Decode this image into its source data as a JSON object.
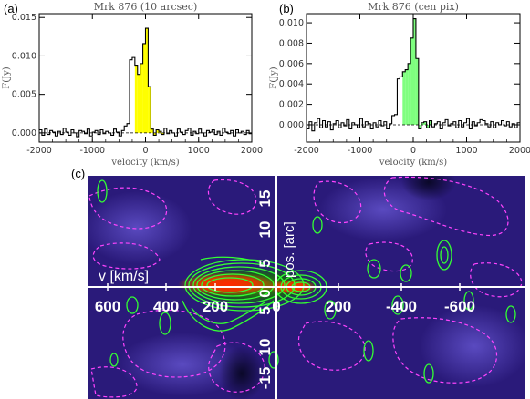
{
  "panels": {
    "a": "(a)",
    "b": "(b)",
    "c": "(c)"
  },
  "chart_data": [
    {
      "type": "bar",
      "style": "step-histogram",
      "title": "Mrk 876 (10 arcsec)",
      "xlabel": "velocity (km/s)",
      "ylabel": "F(Jy)",
      "xlim": [
        -2000,
        2000
      ],
      "ylim": [
        -0.0012,
        0.0155
      ],
      "xticks": [
        "-2000",
        "-1000",
        "0",
        "1000",
        "2000"
      ],
      "yticks": [
        "0.000",
        "0.005",
        "0.010",
        "0.015"
      ],
      "fill_color": "#ffff00",
      "fill_range": [
        -200,
        350
      ],
      "bin_width": 50,
      "x_start": -2000,
      "values": [
        0.0004,
        -0.0003,
        0.0005,
        -0.0002,
        0.0003,
        0.0001,
        -0.0004,
        0.0002,
        -0.0002,
        0.0006,
        0.0001,
        -0.0003,
        0.0004,
        0.0,
        -0.0005,
        0.0003,
        0.0002,
        -0.0001,
        0.0005,
        -0.0004,
        0.0001,
        0.0003,
        -0.0002,
        0.0004,
        -0.0001,
        0.0002,
        0.0,
        -0.0003,
        0.0005,
        0.0001,
        -0.0004,
        0.0003,
        0.0009,
        0.0012,
        0.0095,
        0.0098,
        0.0088,
        0.0076,
        0.009,
        0.0116,
        0.0136,
        0.006,
        0.0005,
        -0.0003,
        0.0004,
        0.0002,
        -0.0002,
        0.0006,
        -0.0001,
        0.0003,
        0.0,
        -0.0004,
        0.0005,
        0.0001,
        -0.0002,
        0.0003,
        0.0006,
        -0.0003,
        0.0002,
        -0.0001,
        0.0005,
        0.0,
        -0.0004,
        0.0003,
        0.0001,
        0.0004,
        -0.0002,
        0.0002,
        -0.0003,
        0.0006,
        0.0001,
        -0.0001,
        0.0003,
        -0.0004,
        0.0004,
        0.0,
        0.0002,
        -0.0002,
        0.0003,
        -0.0001
      ]
    },
    {
      "type": "bar",
      "style": "step-histogram",
      "title": "Mrk 876 (cen pix)",
      "xlabel": "velocity (km/s)",
      "ylabel": "F(Jy)",
      "xlim": [
        -2000,
        2000
      ],
      "ylim": [
        -0.0017,
        0.0109
      ],
      "xticks": [
        "-2000",
        "-1000",
        "0",
        "1000",
        "2000"
      ],
      "yticks": [
        "0.000",
        "0.002",
        "0.004",
        "0.006",
        "0.008",
        "0.010"
      ],
      "fill_color": "#7fff7f",
      "fill_range": [
        -200,
        350
      ],
      "bin_width": 50,
      "x_start": -2000,
      "values": [
        -0.0004,
        0.0003,
        -0.0006,
        0.0002,
        0.0006,
        -0.0003,
        0.0004,
        -0.0002,
        0.0003,
        -0.0005,
        0.0001,
        0.0004,
        -0.0003,
        0.0002,
        -0.0001,
        0.0005,
        -0.0004,
        0.0002,
        0.0,
        -0.0003,
        0.0006,
        -0.0002,
        0.0003,
        0.0001,
        -0.0004,
        0.0002,
        -0.0002,
        0.0004,
        -0.0001,
        0.0003,
        -0.0004,
        0.0001,
        0.0009,
        0.001,
        0.0045,
        0.0047,
        0.0052,
        0.0054,
        0.006,
        0.0085,
        0.0104,
        0.0065,
        -0.0004,
        0.0002,
        0.0003,
        -0.0003,
        0.0004,
        -0.0002,
        0.0001,
        0.0003,
        -0.0004,
        0.0002,
        0.0005,
        -0.0001,
        0.0001,
        0.0003,
        -0.0003,
        0.0004,
        -0.0002,
        0.0002,
        0.0006,
        -0.0004,
        0.0003,
        -0.0001,
        0.0002,
        0.0005,
        0.0004,
        0.0001,
        -0.0002,
        0.0003,
        -0.0003,
        0.0002,
        0.0,
        0.0004,
        -0.0001,
        0.0003,
        -0.0002,
        0.0001,
        -0.0003,
        0.0002
      ]
    },
    {
      "type": "heatmap",
      "style": "position-velocity-diagram",
      "xlabel": "v [km/s]",
      "ylabel": "pos. [arc]",
      "xticks": [
        "600",
        "400",
        "200",
        "0",
        "200",
        "-400",
        "-600"
      ],
      "yticks_up": [
        "5",
        "10",
        "15"
      ],
      "yticks_down": [
        "0",
        "5",
        "10",
        "-15"
      ],
      "background_color": "#2a1a7a",
      "emission_color": "#ff2000",
      "contour_color": "#33ff33",
      "negative_contour_color": "#ff44ff",
      "axis_color": "#ffffff"
    }
  ]
}
